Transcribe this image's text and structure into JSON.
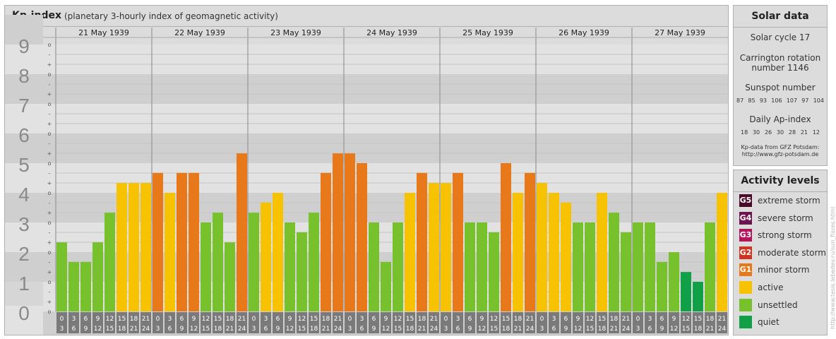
{
  "header": {
    "title": "Kp-index",
    "subtitle": "(planetary 3-hourly index of geomagnetic activity)"
  },
  "chart_data": {
    "type": "bar",
    "ylim": [
      0,
      9
    ],
    "y_ticks": [
      "0",
      "1",
      "2",
      "3",
      "4",
      "5",
      "6",
      "7",
      "8",
      "9"
    ],
    "minor_ticks": [
      "+",
      "o",
      "-"
    ],
    "days": [
      "21 May 1939",
      "22 May 1939",
      "23 May 1939",
      "24 May 1939",
      "25 May 1939",
      "26 May 1939",
      "27 May 1939"
    ],
    "interval_labels": [
      [
        "0",
        "3"
      ],
      [
        "3",
        "6"
      ],
      [
        "6",
        "9"
      ],
      [
        "9",
        "12"
      ],
      [
        "12",
        "15"
      ],
      [
        "15",
        "18"
      ],
      [
        "18",
        "21"
      ],
      [
        "21",
        "24"
      ]
    ],
    "values": [
      [
        2.33,
        1.67,
        1.67,
        2.33,
        3.33,
        4.33,
        4.33,
        4.33
      ],
      [
        4.67,
        4.0,
        4.67,
        4.67,
        3.0,
        3.33,
        2.33,
        5.33
      ],
      [
        3.33,
        3.67,
        4.0,
        3.0,
        2.67,
        3.33,
        4.67,
        5.33
      ],
      [
        5.33,
        5.0,
        3.0,
        1.67,
        3.0,
        4.0,
        4.67,
        4.33
      ],
      [
        4.33,
        4.67,
        3.0,
        3.0,
        2.67,
        5.0,
        4.0,
        4.67
      ],
      [
        4.33,
        4.0,
        3.67,
        3.0,
        3.0,
        4.0,
        3.33,
        2.67
      ],
      [
        3.0,
        3.0,
        1.67,
        2.0,
        1.33,
        1.0,
        3.0,
        4.0
      ]
    ],
    "colors": {
      "quiet": "#119f48",
      "unsettled": "#76c12c",
      "active": "#f7c300",
      "minor_storm": "#e8791a"
    }
  },
  "solar": {
    "title": "Solar data",
    "cycle": "Solar cycle 17",
    "carrington_line1": "Carrington rotation",
    "carrington_line2": "number 1146",
    "sunspot_title": "Sunspot number",
    "sunspot_values": [
      "87",
      "85",
      "93",
      "106",
      "107",
      "97",
      "104"
    ],
    "ap_title": "Daily Ap-index",
    "ap_values": [
      "18",
      "30",
      "26",
      "30",
      "28",
      "21",
      "12"
    ],
    "source_line1": "Kp-data from GFZ Potsdam:",
    "source_line2": "http://www.gfz-potsdam.de"
  },
  "activity": {
    "title": "Activity levels",
    "levels": [
      {
        "code": "G5",
        "label": "extreme storm",
        "color": "#4b0a2a"
      },
      {
        "code": "G4",
        "label": "severe storm",
        "color": "#6e1250"
      },
      {
        "code": "G3",
        "label": "strong storm",
        "color": "#b4145a"
      },
      {
        "code": "G2",
        "label": "moderate storm",
        "color": "#d2321e"
      },
      {
        "code": "G1",
        "label": "minor storm",
        "color": "#e8791a"
      },
      {
        "code": "",
        "label": "active",
        "color": "#f7c300"
      },
      {
        "code": "",
        "label": "unsettled",
        "color": "#76c12c"
      },
      {
        "code": "",
        "label": "quiet",
        "color": "#119f48"
      }
    ]
  },
  "watermark": "http://www.tesis.lebedev.ru/sun_flares.html"
}
